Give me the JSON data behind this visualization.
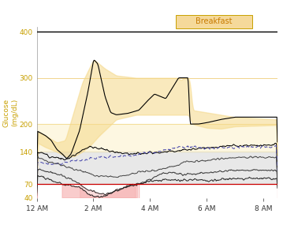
{
  "title": "Breakfast",
  "title_color": "#c87a00",
  "title_bg": "#f5d99a",
  "title_border": "#c8a000",
  "ylabel": "Glucose\n(mg/dL)",
  "ylabel_color": "#c8a000",
  "xlabel_ticks": [
    "12 AM",
    "2 AM",
    "4 AM",
    "6 AM",
    "8 AM"
  ],
  "xlabel_tick_positions": [
    0,
    2,
    4,
    6,
    8
  ],
  "ylim": [
    40,
    410
  ],
  "xlim": [
    0,
    8.5
  ],
  "yticks": [
    40,
    70,
    140,
    200,
    300,
    400
  ],
  "ytick_color": "#c8a000",
  "hline_70_color": "#cc0000",
  "band_gray_low": 70,
  "band_gray_high": 140,
  "band_gray_color": "#cccccc",
  "background_color": "#ffffff",
  "grid_color": "#f0d080",
  "yellow_fill_color": "#f5d888",
  "yellow_band_color": "#faeaaa",
  "pink_fill_color": "#f5aaaa",
  "breakfast_x_start": 4.9,
  "breakfast_x_end": 7.6
}
